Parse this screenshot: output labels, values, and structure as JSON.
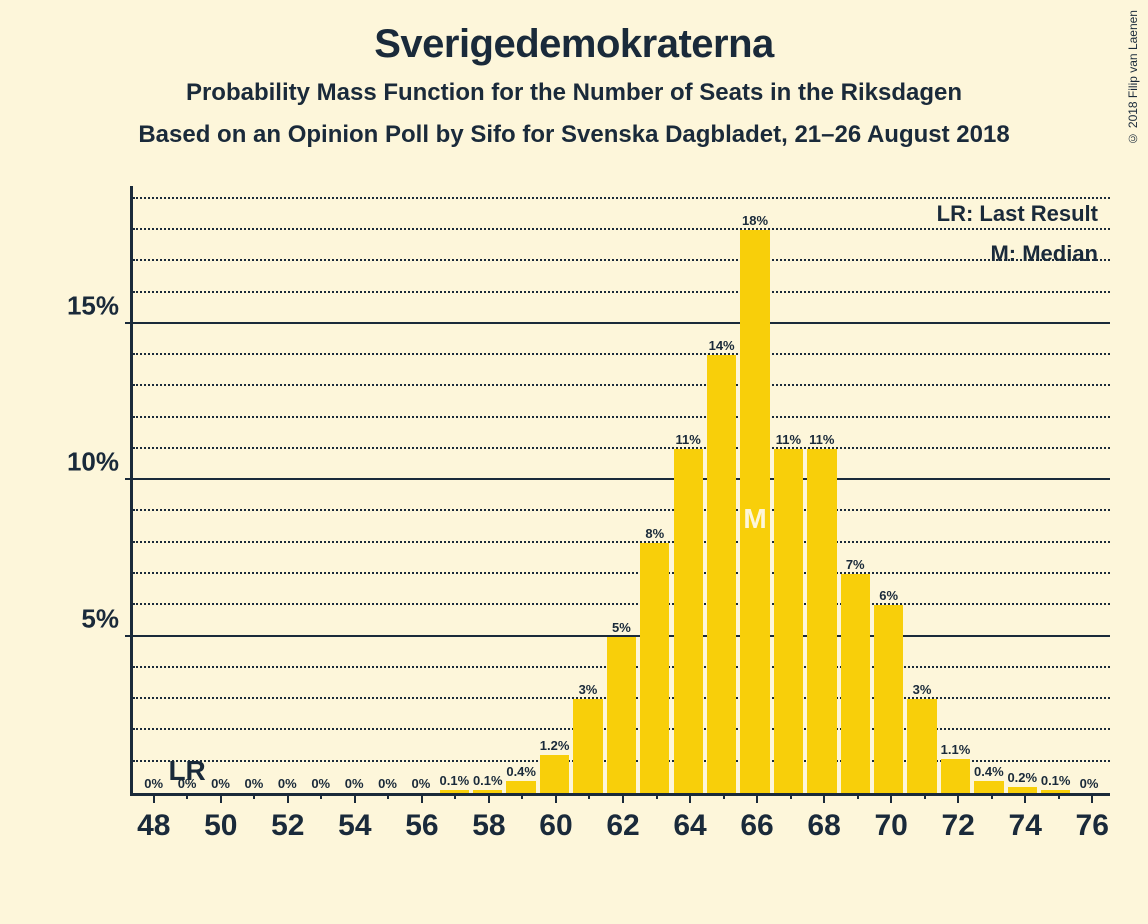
{
  "copyright": "© 2018 Filip van Laenen",
  "title": "Sverigedemokraterna",
  "subtitle1": "Probability Mass Function for the Number of Seats in the Riksdagen",
  "subtitle2": "Based on an Opinion Poll by Sifo for Svenska Dagbladet, 21–26 August 2018",
  "legend": {
    "lr": "LR: Last Result",
    "m": "M: Median"
  },
  "chart": {
    "type": "bar",
    "background_color": "#fdf6da",
    "bar_color": "#f8cf0a",
    "axis_color": "#1a2a3a",
    "text_color": "#1a2a3a",
    "median_text_color": "#fdf6da",
    "y": {
      "max_percent": 19.5,
      "major_ticks": [
        5,
        10,
        15
      ],
      "minor_tick_step": 1,
      "label_suffix": "%"
    },
    "x": {
      "min": 48,
      "max": 76,
      "major_step": 2,
      "minor_step": 1
    },
    "lr_seat": 49,
    "lr_label": "LR",
    "median_seat": 66,
    "median_label": "M",
    "bars": [
      {
        "seat": 48,
        "value": 0,
        "label": "0%"
      },
      {
        "seat": 49,
        "value": 0,
        "label": "0%"
      },
      {
        "seat": 50,
        "value": 0,
        "label": "0%"
      },
      {
        "seat": 51,
        "value": 0,
        "label": "0%"
      },
      {
        "seat": 52,
        "value": 0,
        "label": "0%"
      },
      {
        "seat": 53,
        "value": 0,
        "label": "0%"
      },
      {
        "seat": 54,
        "value": 0,
        "label": "0%"
      },
      {
        "seat": 55,
        "value": 0,
        "label": "0%"
      },
      {
        "seat": 56,
        "value": 0,
        "label": "0%"
      },
      {
        "seat": 57,
        "value": 0.1,
        "label": "0.1%"
      },
      {
        "seat": 58,
        "value": 0.1,
        "label": "0.1%"
      },
      {
        "seat": 59,
        "value": 0.4,
        "label": "0.4%"
      },
      {
        "seat": 60,
        "value": 1.2,
        "label": "1.2%"
      },
      {
        "seat": 61,
        "value": 3,
        "label": "3%"
      },
      {
        "seat": 62,
        "value": 5,
        "label": "5%"
      },
      {
        "seat": 63,
        "value": 8,
        "label": "8%"
      },
      {
        "seat": 64,
        "value": 11,
        "label": "11%"
      },
      {
        "seat": 65,
        "value": 14,
        "label": "14%"
      },
      {
        "seat": 66,
        "value": 18,
        "label": "18%"
      },
      {
        "seat": 67,
        "value": 11,
        "label": "11%"
      },
      {
        "seat": 68,
        "value": 11,
        "label": "11%"
      },
      {
        "seat": 69,
        "value": 7,
        "label": "7%"
      },
      {
        "seat": 70,
        "value": 6,
        "label": "6%"
      },
      {
        "seat": 71,
        "value": 3,
        "label": "3%"
      },
      {
        "seat": 72,
        "value": 1.1,
        "label": "1.1%"
      },
      {
        "seat": 73,
        "value": 0.4,
        "label": "0.4%"
      },
      {
        "seat": 74,
        "value": 0.2,
        "label": "0.2%"
      },
      {
        "seat": 75,
        "value": 0.1,
        "label": "0.1%"
      },
      {
        "seat": 76,
        "value": 0,
        "label": "0%"
      }
    ]
  }
}
